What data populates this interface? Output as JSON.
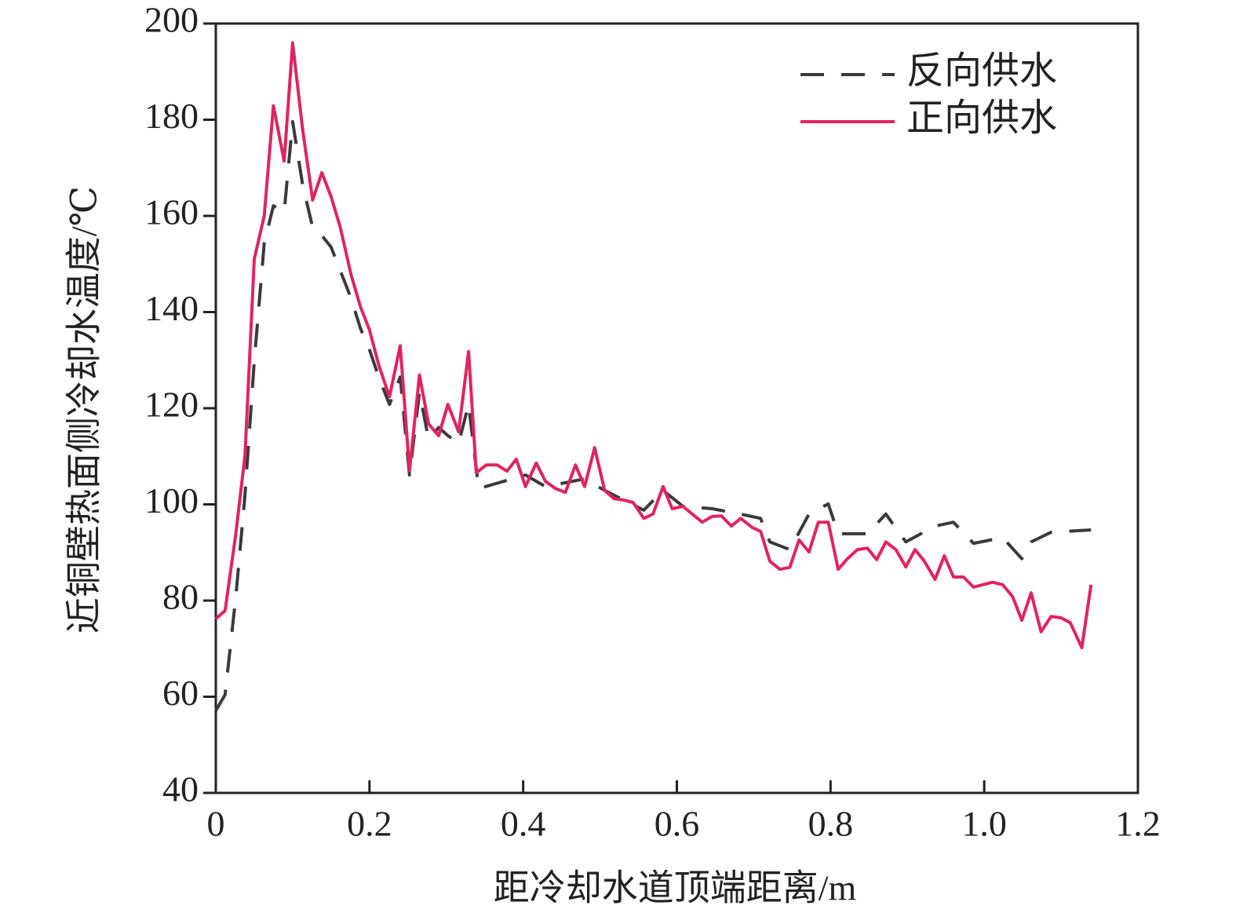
{
  "chart_data": {
    "type": "line",
    "x_label": "距冷却水道顶端距离/m",
    "y_label": "近铜壁热面侧冷却水温度/℃",
    "xlim": [
      0,
      1.2
    ],
    "xticks": [
      0,
      0.2,
      0.4,
      0.6,
      0.8,
      {
        "value": 1,
        "label": "1.0"
      },
      1.2
    ],
    "ylim": [
      40,
      200
    ],
    "yticks": [
      40,
      60,
      80,
      100,
      120,
      140,
      160,
      180,
      200
    ],
    "grid": false,
    "legend": "upper right",
    "series": [
      {
        "name": "反向供水",
        "color": "#3a3a3a",
        "style": "dashed",
        "x": [
          0,
          0.012,
          0.026,
          0.038,
          0.05,
          0.063,
          0.075,
          0.089,
          0.1,
          0.113,
          0.126,
          0.138,
          0.15,
          0.162,
          0.176,
          0.188,
          0.2,
          0.212,
          0.226,
          0.24,
          0.252,
          0.265,
          0.277,
          0.29,
          0.302,
          0.316,
          0.329,
          0.342,
          0.403,
          0.429,
          0.455,
          0.48,
          0.506,
          0.557,
          0.582,
          0.608,
          0.646,
          0.683,
          0.709,
          0.721,
          0.747,
          0.772,
          0.797,
          0.81,
          0.848,
          0.872,
          0.898,
          0.936,
          0.96,
          0.986,
          1.024,
          1.049,
          1.061,
          1.087,
          1.139
        ],
        "values": [
          57.1,
          60.4,
          80.8,
          102,
          129.8,
          154.3,
          162.1,
          160.8,
          179.6,
          166.5,
          157.6,
          155.9,
          153.5,
          148.6,
          142.9,
          136.7,
          132.2,
          126.5,
          120.8,
          126.5,
          106.1,
          123.3,
          113.5,
          116,
          114.3,
          112.7,
          120.8,
          103.3,
          106.1,
          103.7,
          104.5,
          105.3,
          102.9,
          98.8,
          102.9,
          99.6,
          99.1,
          98,
          97.1,
          92.2,
          90.6,
          98,
          100.1,
          93.9,
          93.9,
          98,
          92.2,
          95.5,
          96.3,
          91.9,
          93.1,
          88.7,
          92.2,
          94.2,
          94.7
        ]
      },
      {
        "name": "正向供水",
        "color": "#e0245e",
        "style": "solid",
        "x": [
          0,
          0.012,
          0.026,
          0.038,
          0.05,
          0.063,
          0.075,
          0.089,
          0.1,
          0.113,
          0.126,
          0.138,
          0.15,
          0.162,
          0.176,
          0.188,
          0.2,
          0.212,
          0.226,
          0.24,
          0.252,
          0.265,
          0.277,
          0.29,
          0.302,
          0.316,
          0.329,
          0.339,
          0.352,
          0.366,
          0.379,
          0.391,
          0.403,
          0.417,
          0.429,
          0.442,
          0.455,
          0.468,
          0.48,
          0.493,
          0.506,
          0.518,
          0.531,
          0.543,
          0.557,
          0.569,
          0.582,
          0.594,
          0.608,
          0.62,
          0.633,
          0.646,
          0.658,
          0.671,
          0.683,
          0.698,
          0.709,
          0.721,
          0.734,
          0.747,
          0.759,
          0.772,
          0.784,
          0.797,
          0.81,
          0.822,
          0.835,
          0.848,
          0.86,
          0.872,
          0.885,
          0.898,
          0.91,
          0.922,
          0.936,
          0.948,
          0.96,
          0.973,
          0.986,
          0.998,
          1.011,
          1.024,
          1.037,
          1.049,
          1.061,
          1.074,
          1.087,
          1.1,
          1.112,
          1.127,
          1.139
        ],
        "values": [
          76.2,
          77.9,
          93.9,
          110.2,
          151,
          160,
          182.9,
          171.4,
          196,
          178,
          163.3,
          169,
          164,
          157.6,
          147.8,
          141.2,
          136.3,
          129,
          122.4,
          133,
          107,
          126.9,
          116.7,
          114.3,
          120.8,
          115.1,
          131.8,
          106.6,
          108.2,
          108.2,
          106.9,
          109.4,
          103.7,
          108.6,
          104.8,
          103.3,
          102.5,
          108.2,
          103.7,
          111.8,
          102.9,
          101.2,
          100.9,
          100.4,
          97.1,
          98,
          103.7,
          99.1,
          99.6,
          98,
          96.3,
          97.5,
          97.6,
          95.5,
          97.1,
          95.2,
          94.4,
          88.2,
          86.5,
          86.9,
          92.6,
          90.1,
          96.3,
          96.3,
          86.5,
          88.7,
          90.6,
          90.9,
          88.5,
          92.2,
          90.6,
          87,
          90.6,
          88.2,
          84.4,
          89.3,
          84.9,
          84.9,
          82.8,
          83.3,
          83.8,
          83.3,
          80.8,
          75.9,
          81.6,
          73.5,
          76.7,
          76.4,
          75.4,
          70.2,
          83.3
        ]
      }
    ]
  }
}
